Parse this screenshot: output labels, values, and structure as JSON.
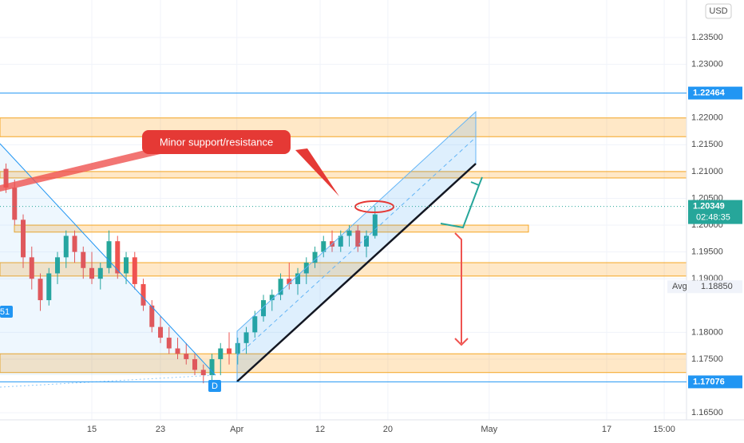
{
  "chart_data": {
    "type": "candlestick",
    "currency": "USD",
    "annotation": "Minor support/resistance",
    "marker_text": "D",
    "left_badge": "51",
    "xlim": [
      4.3,
      84.3
    ],
    "xticks": [
      {
        "value": 15,
        "label": "15"
      },
      {
        "value": 23,
        "label": "23"
      },
      {
        "value": 31.9,
        "label": "Apr"
      },
      {
        "value": 41.6,
        "label": "12"
      },
      {
        "value": 49.5,
        "label": "20"
      },
      {
        "value": 61.3,
        "label": "May"
      },
      {
        "value": 75,
        "label": "17"
      },
      {
        "value": 81.7,
        "label": "15:00"
      }
    ],
    "ylim": [
      1.1601,
      1.242
    ],
    "yticks": [
      {
        "value": 1.235,
        "label": "1.23500"
      },
      {
        "value": 1.23,
        "label": "1.23000"
      },
      {
        "value": 1.22,
        "label": "1.22000"
      },
      {
        "value": 1.215,
        "label": "1.21500"
      },
      {
        "value": 1.21,
        "label": "1.21000"
      },
      {
        "value": 1.205,
        "label": "1.20500"
      },
      {
        "value": 1.2,
        "label": "1.20000"
      },
      {
        "value": 1.195,
        "label": "1.19500"
      },
      {
        "value": 1.19,
        "label": "1.19000"
      },
      {
        "value": 1.18,
        "label": "1.18000"
      },
      {
        "value": 1.175,
        "label": "1.17500"
      },
      {
        "value": 1.165,
        "label": "1.16500"
      }
    ],
    "up_color": "#26a69a",
    "down_color": "#ef5350",
    "x": [
      5,
      6,
      7,
      8,
      9,
      10,
      11,
      12,
      13,
      14,
      15,
      16,
      17,
      18,
      19,
      20,
      21,
      22,
      23,
      24,
      25,
      26,
      27,
      28,
      29,
      30,
      31,
      32,
      33,
      34,
      35,
      36,
      37,
      38,
      39,
      40,
      41,
      42,
      43,
      44,
      45,
      46,
      47,
      48
    ],
    "open": [
      1.2105,
      1.207,
      1.201,
      1.194,
      1.19,
      1.186,
      1.191,
      1.194,
      1.198,
      1.195,
      1.192,
      1.19,
      1.192,
      1.197,
      1.191,
      1.194,
      1.189,
      1.185,
      1.181,
      1.179,
      1.177,
      1.176,
      1.175,
      1.173,
      1.172,
      1.175,
      1.177,
      1.176,
      1.178,
      1.18,
      1.183,
      1.186,
      1.187,
      1.19,
      1.189,
      1.191,
      1.193,
      1.195,
      1.197,
      1.196,
      1.198,
      1.199,
      1.196,
      1.198
    ],
    "high": [
      1.2115,
      1.2085,
      1.202,
      1.196,
      1.191,
      1.192,
      1.195,
      1.199,
      1.199,
      1.196,
      1.195,
      1.193,
      1.199,
      1.198,
      1.195,
      1.195,
      1.19,
      1.186,
      1.183,
      1.181,
      1.179,
      1.178,
      1.176,
      1.174,
      1.176,
      1.178,
      1.18,
      1.179,
      1.181,
      1.184,
      1.187,
      1.188,
      1.191,
      1.193,
      1.192,
      1.194,
      1.196,
      1.198,
      1.199,
      1.199,
      1.2,
      1.2,
      1.199,
      1.2035
    ],
    "low": [
      1.206,
      1.2,
      1.192,
      1.188,
      1.184,
      1.185,
      1.189,
      1.192,
      1.193,
      1.19,
      1.189,
      1.188,
      1.191,
      1.19,
      1.189,
      1.188,
      1.184,
      1.18,
      1.178,
      1.176,
      1.175,
      1.174,
      1.172,
      1.1705,
      1.171,
      1.172,
      1.174,
      1.174,
      1.176,
      1.179,
      1.182,
      1.184,
      1.186,
      1.188,
      1.187,
      1.189,
      1.192,
      1.194,
      1.195,
      1.195,
      1.196,
      1.195,
      1.194,
      1.1975
    ],
    "close": [
      1.207,
      1.201,
      1.194,
      1.19,
      1.186,
      1.191,
      1.194,
      1.198,
      1.195,
      1.192,
      1.19,
      1.192,
      1.197,
      1.191,
      1.194,
      1.189,
      1.185,
      1.181,
      1.179,
      1.177,
      1.176,
      1.175,
      1.173,
      1.172,
      1.175,
      1.177,
      1.176,
      1.178,
      1.18,
      1.183,
      1.186,
      1.187,
      1.19,
      1.189,
      1.191,
      1.193,
      1.195,
      1.197,
      1.196,
      1.198,
      1.199,
      1.196,
      1.198,
      1.202
    ],
    "zones": [
      {
        "low": 1.2165,
        "high": 1.22
      },
      {
        "low": 1.2088,
        "high": 1.21
      },
      {
        "low": 1.1987,
        "high": 1.2
      },
      {
        "low": 1.1905,
        "high": 1.193
      },
      {
        "low": 1.1725,
        "high": 1.176
      }
    ],
    "price_lines": [
      {
        "value": 1.22464,
        "color": "#2196f3"
      },
      {
        "value": 1.17076,
        "color": "#2196f3"
      }
    ],
    "last_price": 1.20349,
    "countdown": "02:48:35",
    "avg": {
      "name": "Avg",
      "value": 1.1885,
      "label": "1.18850"
    }
  }
}
